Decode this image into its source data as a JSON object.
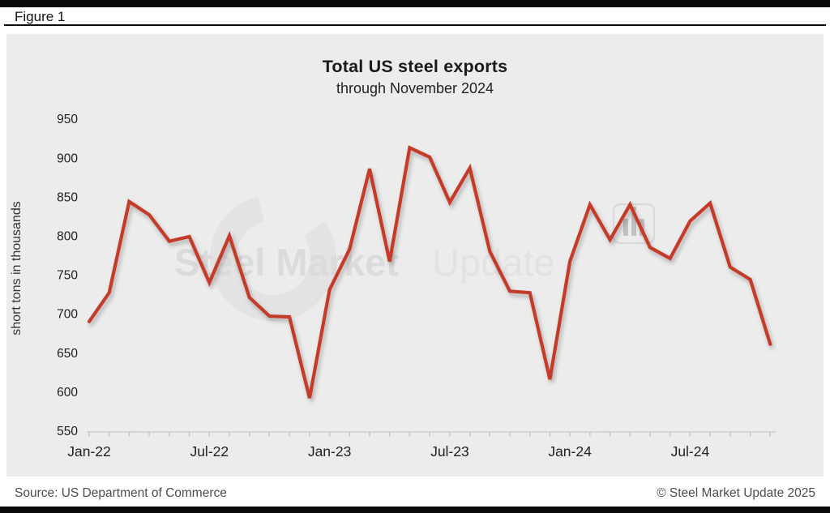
{
  "figure_label": "Figure 1",
  "chart_data": {
    "type": "line",
    "title": "Total US steel exports",
    "subtitle": "through November 2024",
    "ylabel": "short tons in thousands",
    "xlabel": "",
    "ylim": [
      550,
      950
    ],
    "y_ticks": [
      950,
      900,
      850,
      800,
      750,
      700,
      650,
      600,
      550
    ],
    "x_ticks": [
      {
        "label": "Jan-22",
        "month": 0
      },
      {
        "label": "Jul-22",
        "month": 6
      },
      {
        "label": "Jan-23",
        "month": 12
      },
      {
        "label": "Jul-23",
        "month": 18
      },
      {
        "label": "Jan-24",
        "month": 24
      },
      {
        "label": "Jul-24",
        "month": 30
      }
    ],
    "grid": false,
    "legend": "none",
    "line_color": "#c43b2c",
    "panel_bg": "#ececec",
    "months": [
      "Jan-22",
      "Feb-22",
      "Mar-22",
      "Apr-22",
      "May-22",
      "Jun-22",
      "Jul-22",
      "Aug-22",
      "Sep-22",
      "Oct-22",
      "Nov-22",
      "Dec-22",
      "Jan-23",
      "Feb-23",
      "Mar-23",
      "Apr-23",
      "May-23",
      "Jun-23",
      "Jul-23",
      "Aug-23",
      "Sep-23",
      "Oct-23",
      "Nov-23",
      "Dec-23",
      "Jan-24",
      "Feb-24",
      "Mar-24",
      "Apr-24",
      "May-24",
      "Jun-24",
      "Jul-24",
      "Aug-24",
      "Sep-24",
      "Oct-24",
      "Nov-24"
    ],
    "values": [
      690,
      727,
      844,
      827,
      793,
      799,
      740,
      800,
      721,
      697,
      696,
      592,
      731,
      783,
      886,
      767,
      913,
      901,
      843,
      887,
      780,
      729,
      727,
      616,
      767,
      840,
      795,
      840,
      785,
      771,
      819,
      842,
      760,
      744,
      661
    ]
  },
  "watermark": {
    "text_bold": "Steel Market",
    "text_light": "Update"
  },
  "footer": {
    "source": "Source: US Department of Commerce",
    "copyright": "© Steel Market Update 2025"
  }
}
